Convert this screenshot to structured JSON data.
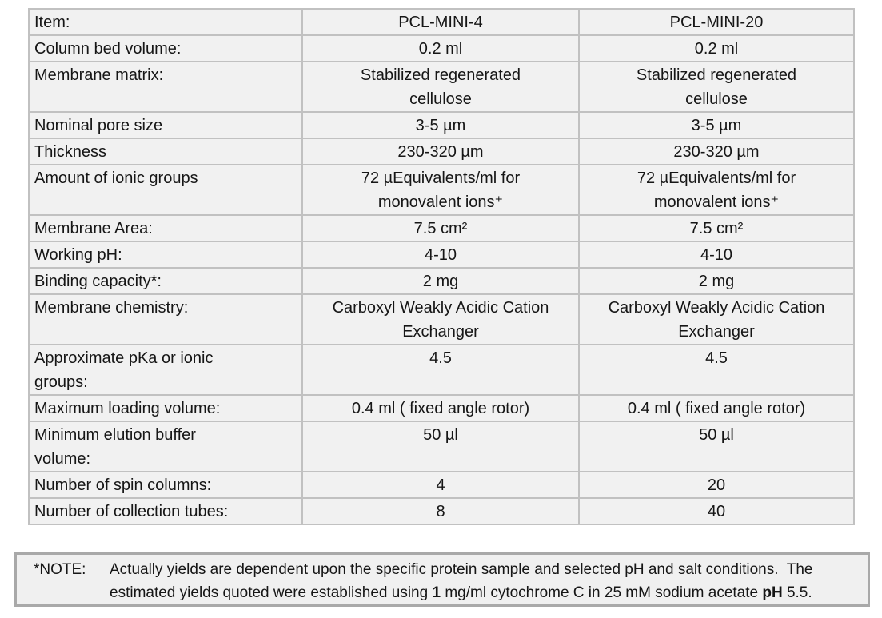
{
  "table": {
    "rows": [
      {
        "label": "Item:",
        "v1": "PCL-MINI-4",
        "v2": "PCL-MINI-20"
      },
      {
        "label": "Column bed volume:",
        "v1": "0.2 ml",
        "v2": "0.2 ml"
      },
      {
        "label": "Membrane matrix:",
        "v1": "Stabilized regenerated\ncellulose",
        "v2": "Stabilized regenerated\ncellulose"
      },
      {
        "label": "Nominal pore size",
        "v1": "3-5 µm",
        "v2": "3-5 µm"
      },
      {
        "label": "Thickness",
        "v1": "230-320 µm",
        "v2": "230-320 µm"
      },
      {
        "label": "Amount of ionic groups",
        "v1": "72 µEquivalents/ml for\nmonovalent ions⁺",
        "v2": "72 µEquivalents/ml for\nmonovalent ions⁺"
      },
      {
        "label": "Membrane Area:",
        "v1": "7.5 cm²",
        "v2": "7.5 cm²"
      },
      {
        "label": "Working pH:",
        "v1": "4-10",
        "v2": "4-10"
      },
      {
        "label": "Binding capacity*:",
        "v1": "2 mg",
        "v2": "2 mg"
      },
      {
        "label": "Membrane chemistry:",
        "v1": "Carboxyl Weakly Acidic Cation\nExchanger",
        "v2": "Carboxyl Weakly Acidic Cation\nExchanger"
      },
      {
        "label": "Approximate pKa or ionic\ngroups:",
        "v1": "4.5",
        "v2": "4.5"
      },
      {
        "label": "Maximum loading volume:",
        "v1": "0.4 ml ( fixed angle rotor)",
        "v2": "0.4 ml ( fixed angle rotor)"
      },
      {
        "label": "Minimum elution buffer\nvolume:",
        "v1": "50 µl",
        "v2": "50 µl"
      },
      {
        "label": "Number of spin columns:",
        "v1": "4",
        "v2": "20"
      },
      {
        "label": "Number of collection tubes:",
        "v1": "8",
        "v2": "40"
      }
    ]
  },
  "note": {
    "label": "*NOTE:",
    "runs": [
      {
        "text": "Actually yields are dependent upon the specific protein sample and selected pH and salt conditions.  The\nestimated yields quoted were established using ",
        "bold": false
      },
      {
        "text": "1",
        "bold": true
      },
      {
        "text": " mg/ml cytochrome C in 25 mM sodium acetate ",
        "bold": false
      },
      {
        "text": "pH",
        "bold": true
      },
      {
        "text": " 5.5.",
        "bold": false
      }
    ]
  },
  "colors": {
    "cell_background": "#f1f1f1",
    "table_border": "#c1c1c1",
    "note_border": "#a9a9a9",
    "text": "#161616",
    "page_background": "#ffffff"
  }
}
